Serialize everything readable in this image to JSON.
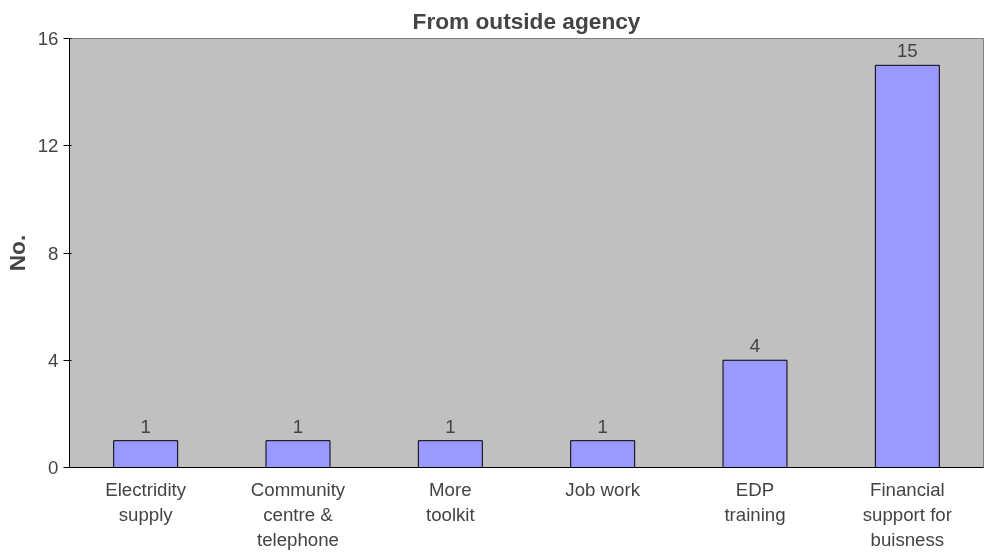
{
  "chart_data": {
    "type": "bar",
    "title": "From outside agency",
    "ylabel": "No.",
    "categories": [
      "Electridity\nsupply",
      "Community\ncentre &\ntelephone",
      "More\ntoolkit",
      "Job work",
      "EDP\ntraining",
      "Financial\nsupport for\nbuisness"
    ],
    "values": [
      1,
      1,
      1,
      1,
      4,
      15
    ],
    "color": "#9999ff",
    "ylim": [
      0,
      16
    ],
    "yticks": [
      0,
      4,
      8,
      12,
      16
    ],
    "grid": false,
    "data_labels": true
  }
}
